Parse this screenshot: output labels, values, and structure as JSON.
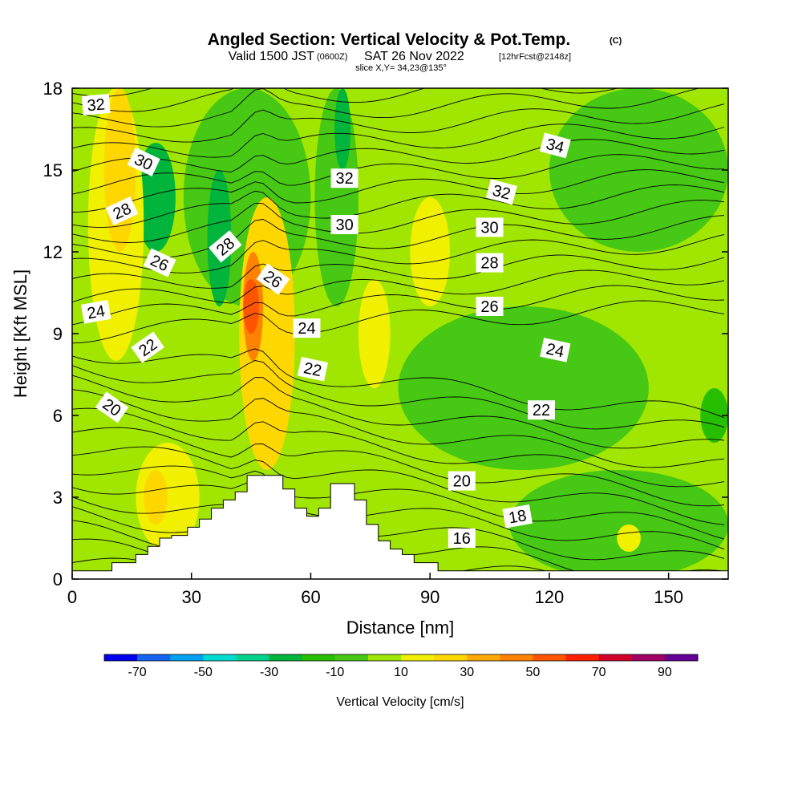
{
  "title": {
    "main": "Angled Section: Vertical Velocity & Pot.Temp.",
    "copyright": "(C)",
    "valid_prefix": "Valid 1500 JST",
    "utc": "(0600Z)",
    "valid_date": "SAT 26 Nov 2022",
    "forecast": "[12hrFcst@2148z]",
    "slice": "slice X,Y= 34,23@135°"
  },
  "chart_data": {
    "type": "heatmap",
    "xlabel": "Distance [nm]",
    "ylabel": "Height [Kft MSL]",
    "xlim": [
      0,
      165
    ],
    "ylim": [
      0,
      18
    ],
    "xticks": [
      0,
      30,
      60,
      90,
      120,
      150
    ],
    "yticks": [
      0,
      3,
      6,
      9,
      12,
      15,
      18
    ],
    "colorbar": {
      "label": "Vertical Velocity [cm/s]",
      "tick_labels": [
        "-70",
        "-50",
        "-30",
        "-10",
        "10",
        "30",
        "50",
        "70",
        "90"
      ],
      "tick_values": [
        -70,
        -50,
        -30,
        -10,
        10,
        30,
        50,
        70,
        90
      ],
      "bounds": [
        -80,
        -70,
        -60,
        -50,
        -40,
        -30,
        -20,
        -10,
        0,
        10,
        20,
        30,
        40,
        50,
        60,
        70,
        80,
        90,
        100
      ],
      "colors": [
        "#0000ee",
        "#1464f0",
        "#00a0f0",
        "#00dcd2",
        "#00d28c",
        "#00b43c",
        "#28be00",
        "#46c814",
        "#a0e600",
        "#f0f000",
        "#ffd700",
        "#ffaa00",
        "#ff8200",
        "#ff5500",
        "#ff1e00",
        "#d20028",
        "#a00064",
        "#640096"
      ],
      "background_color": "#a0e600"
    },
    "velocity_regions": [
      {
        "value": -5,
        "x": [
          28,
          60
        ],
        "y": [
          10,
          18
        ]
      },
      {
        "value": -5,
        "x": [
          61,
          72
        ],
        "y": [
          10,
          18
        ]
      },
      {
        "value": -5,
        "x": [
          82,
          145
        ],
        "y": [
          4,
          10
        ]
      },
      {
        "value": -5,
        "x": [
          120,
          165
        ],
        "y": [
          12,
          18
        ]
      },
      {
        "value": -5,
        "x": [
          110,
          165
        ],
        "y": [
          0,
          4
        ]
      },
      {
        "value": -25,
        "x": [
          16,
          26
        ],
        "y": [
          12,
          16
        ]
      },
      {
        "value": -25,
        "x": [
          34,
          40
        ],
        "y": [
          10,
          15
        ]
      },
      {
        "value": -25,
        "x": [
          66,
          70
        ],
        "y": [
          15,
          18
        ]
      },
      {
        "value": -15,
        "x": [
          158,
          165
        ],
        "y": [
          5,
          7
        ]
      },
      {
        "value": 15,
        "x": [
          4,
          18
        ],
        "y": [
          8,
          18
        ]
      },
      {
        "value": 15,
        "x": [
          85,
          95
        ],
        "y": [
          10,
          14
        ]
      },
      {
        "value": 15,
        "x": [
          72,
          80
        ],
        "y": [
          7,
          11
        ]
      },
      {
        "value": 15,
        "x": [
          16,
          32
        ],
        "y": [
          1,
          5
        ]
      },
      {
        "value": 15,
        "x": [
          137,
          143
        ],
        "y": [
          1,
          2
        ]
      },
      {
        "value": 25,
        "x": [
          42,
          56
        ],
        "y": [
          4,
          14
        ]
      },
      {
        "value": 25,
        "x": [
          8,
          16
        ],
        "y": [
          12,
          18
        ]
      },
      {
        "value": 25,
        "x": [
          18,
          24
        ],
        "y": [
          2,
          4
        ]
      },
      {
        "value": 45,
        "x": [
          43,
          48
        ],
        "y": [
          8,
          12
        ]
      },
      {
        "value": 55,
        "x": [
          43,
          47
        ],
        "y": [
          9,
          11
        ]
      }
    ],
    "terrain_height_kft": [
      {
        "x": 0,
        "h": 0.3
      },
      {
        "x": 10,
        "h": 0.6
      },
      {
        "x": 16,
        "h": 0.9
      },
      {
        "x": 19,
        "h": 1.2
      },
      {
        "x": 22,
        "h": 1.5
      },
      {
        "x": 25,
        "h": 1.6
      },
      {
        "x": 29,
        "h": 1.9
      },
      {
        "x": 32,
        "h": 2.2
      },
      {
        "x": 35,
        "h": 2.6
      },
      {
        "x": 38,
        "h": 2.9
      },
      {
        "x": 41,
        "h": 3.2
      },
      {
        "x": 44,
        "h": 3.8
      },
      {
        "x": 53,
        "h": 3.3
      },
      {
        "x": 56,
        "h": 2.6
      },
      {
        "x": 59,
        "h": 2.3
      },
      {
        "x": 62,
        "h": 2.6
      },
      {
        "x": 65,
        "h": 3.5
      },
      {
        "x": 71,
        "h": 2.9
      },
      {
        "x": 74,
        "h": 2.0
      },
      {
        "x": 77,
        "h": 1.4
      },
      {
        "x": 80,
        "h": 1.1
      },
      {
        "x": 83,
        "h": 0.9
      },
      {
        "x": 86,
        "h": 0.6
      },
      {
        "x": 92,
        "h": 0.3
      },
      {
        "x": 165,
        "h": 0.3
      }
    ],
    "pot_temp_contour_labels": [
      {
        "text": "32",
        "x": 6,
        "y": 17.4,
        "angle": -5
      },
      {
        "text": "30",
        "x": 18,
        "y": 15.3,
        "angle": 25
      },
      {
        "text": "28",
        "x": 12.5,
        "y": 13.5,
        "angle": -25
      },
      {
        "text": "26",
        "x": 22,
        "y": 11.6,
        "angle": 25
      },
      {
        "text": "24",
        "x": 6,
        "y": 9.8,
        "angle": -10
      },
      {
        "text": "22",
        "x": 19,
        "y": 8.5,
        "angle": -35
      },
      {
        "text": "20",
        "x": 10,
        "y": 6.3,
        "angle": 35
      },
      {
        "text": "28",
        "x": 38.5,
        "y": 12.2,
        "angle": -40
      },
      {
        "text": "26",
        "x": 50.5,
        "y": 11,
        "angle": 35
      },
      {
        "text": "24",
        "x": 59,
        "y": 9.2,
        "angle": 0
      },
      {
        "text": "22",
        "x": 60.5,
        "y": 7.7,
        "angle": 12
      },
      {
        "text": "32",
        "x": 68.5,
        "y": 14.7,
        "angle": 0
      },
      {
        "text": "30",
        "x": 68.5,
        "y": 13.0,
        "angle": 0
      },
      {
        "text": "34",
        "x": 121.5,
        "y": 15.9,
        "angle": 15
      },
      {
        "text": "32",
        "x": 108,
        "y": 14.2,
        "angle": 15
      },
      {
        "text": "30",
        "x": 105,
        "y": 12.9,
        "angle": 0
      },
      {
        "text": "28",
        "x": 105,
        "y": 11.6,
        "angle": 0
      },
      {
        "text": "26",
        "x": 105,
        "y": 10.0,
        "angle": 0
      },
      {
        "text": "24",
        "x": 121.5,
        "y": 8.4,
        "angle": 12
      },
      {
        "text": "22",
        "x": 118,
        "y": 6.2,
        "angle": 0
      },
      {
        "text": "20",
        "x": 98,
        "y": 3.6,
        "angle": 0
      },
      {
        "text": "18",
        "x": 112,
        "y": 2.3,
        "angle": -10
      },
      {
        "text": "16",
        "x": 98,
        "y": 1.5,
        "angle": 0
      }
    ]
  }
}
